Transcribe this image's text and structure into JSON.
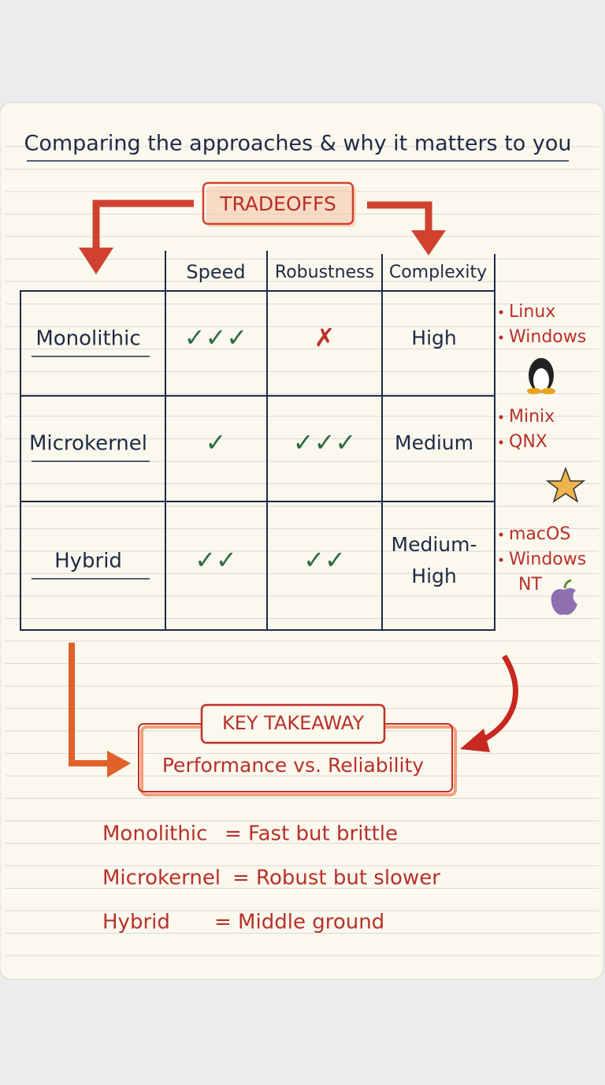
{
  "title": "Comparing the approaches & why it matters to you",
  "tag": "TRADEOFFS",
  "table": {
    "headers": [
      "Speed",
      "Robustness",
      "Complexity"
    ],
    "rows": [
      {
        "name": "Monolithic",
        "speed": "✓✓✓",
        "robustness": "✗",
        "complexity": [
          "High"
        ],
        "examples": [
          "Linux",
          "Windows"
        ]
      },
      {
        "name": "Microkernel",
        "speed": "✓",
        "robustness": "✓✓✓",
        "complexity": [
          "Medium"
        ],
        "examples": [
          "Minix",
          "QNX"
        ]
      },
      {
        "name": "Hybrid",
        "speed": "✓✓",
        "robustness": "✓✓",
        "complexity": [
          "Medium-",
          "High"
        ],
        "examples": [
          "macOS",
          "Windows",
          "NT"
        ]
      }
    ]
  },
  "takeaway": {
    "label": "KEY TAKEAWAY",
    "text": "Performance vs. Reliability"
  },
  "summary": [
    {
      "term": "Monolithic",
      "desc": "= Fast but brittle"
    },
    {
      "term": "Microkernel",
      "desc": "= Robust but slower"
    },
    {
      "term": "Hybrid",
      "desc": "= Middle ground"
    }
  ]
}
